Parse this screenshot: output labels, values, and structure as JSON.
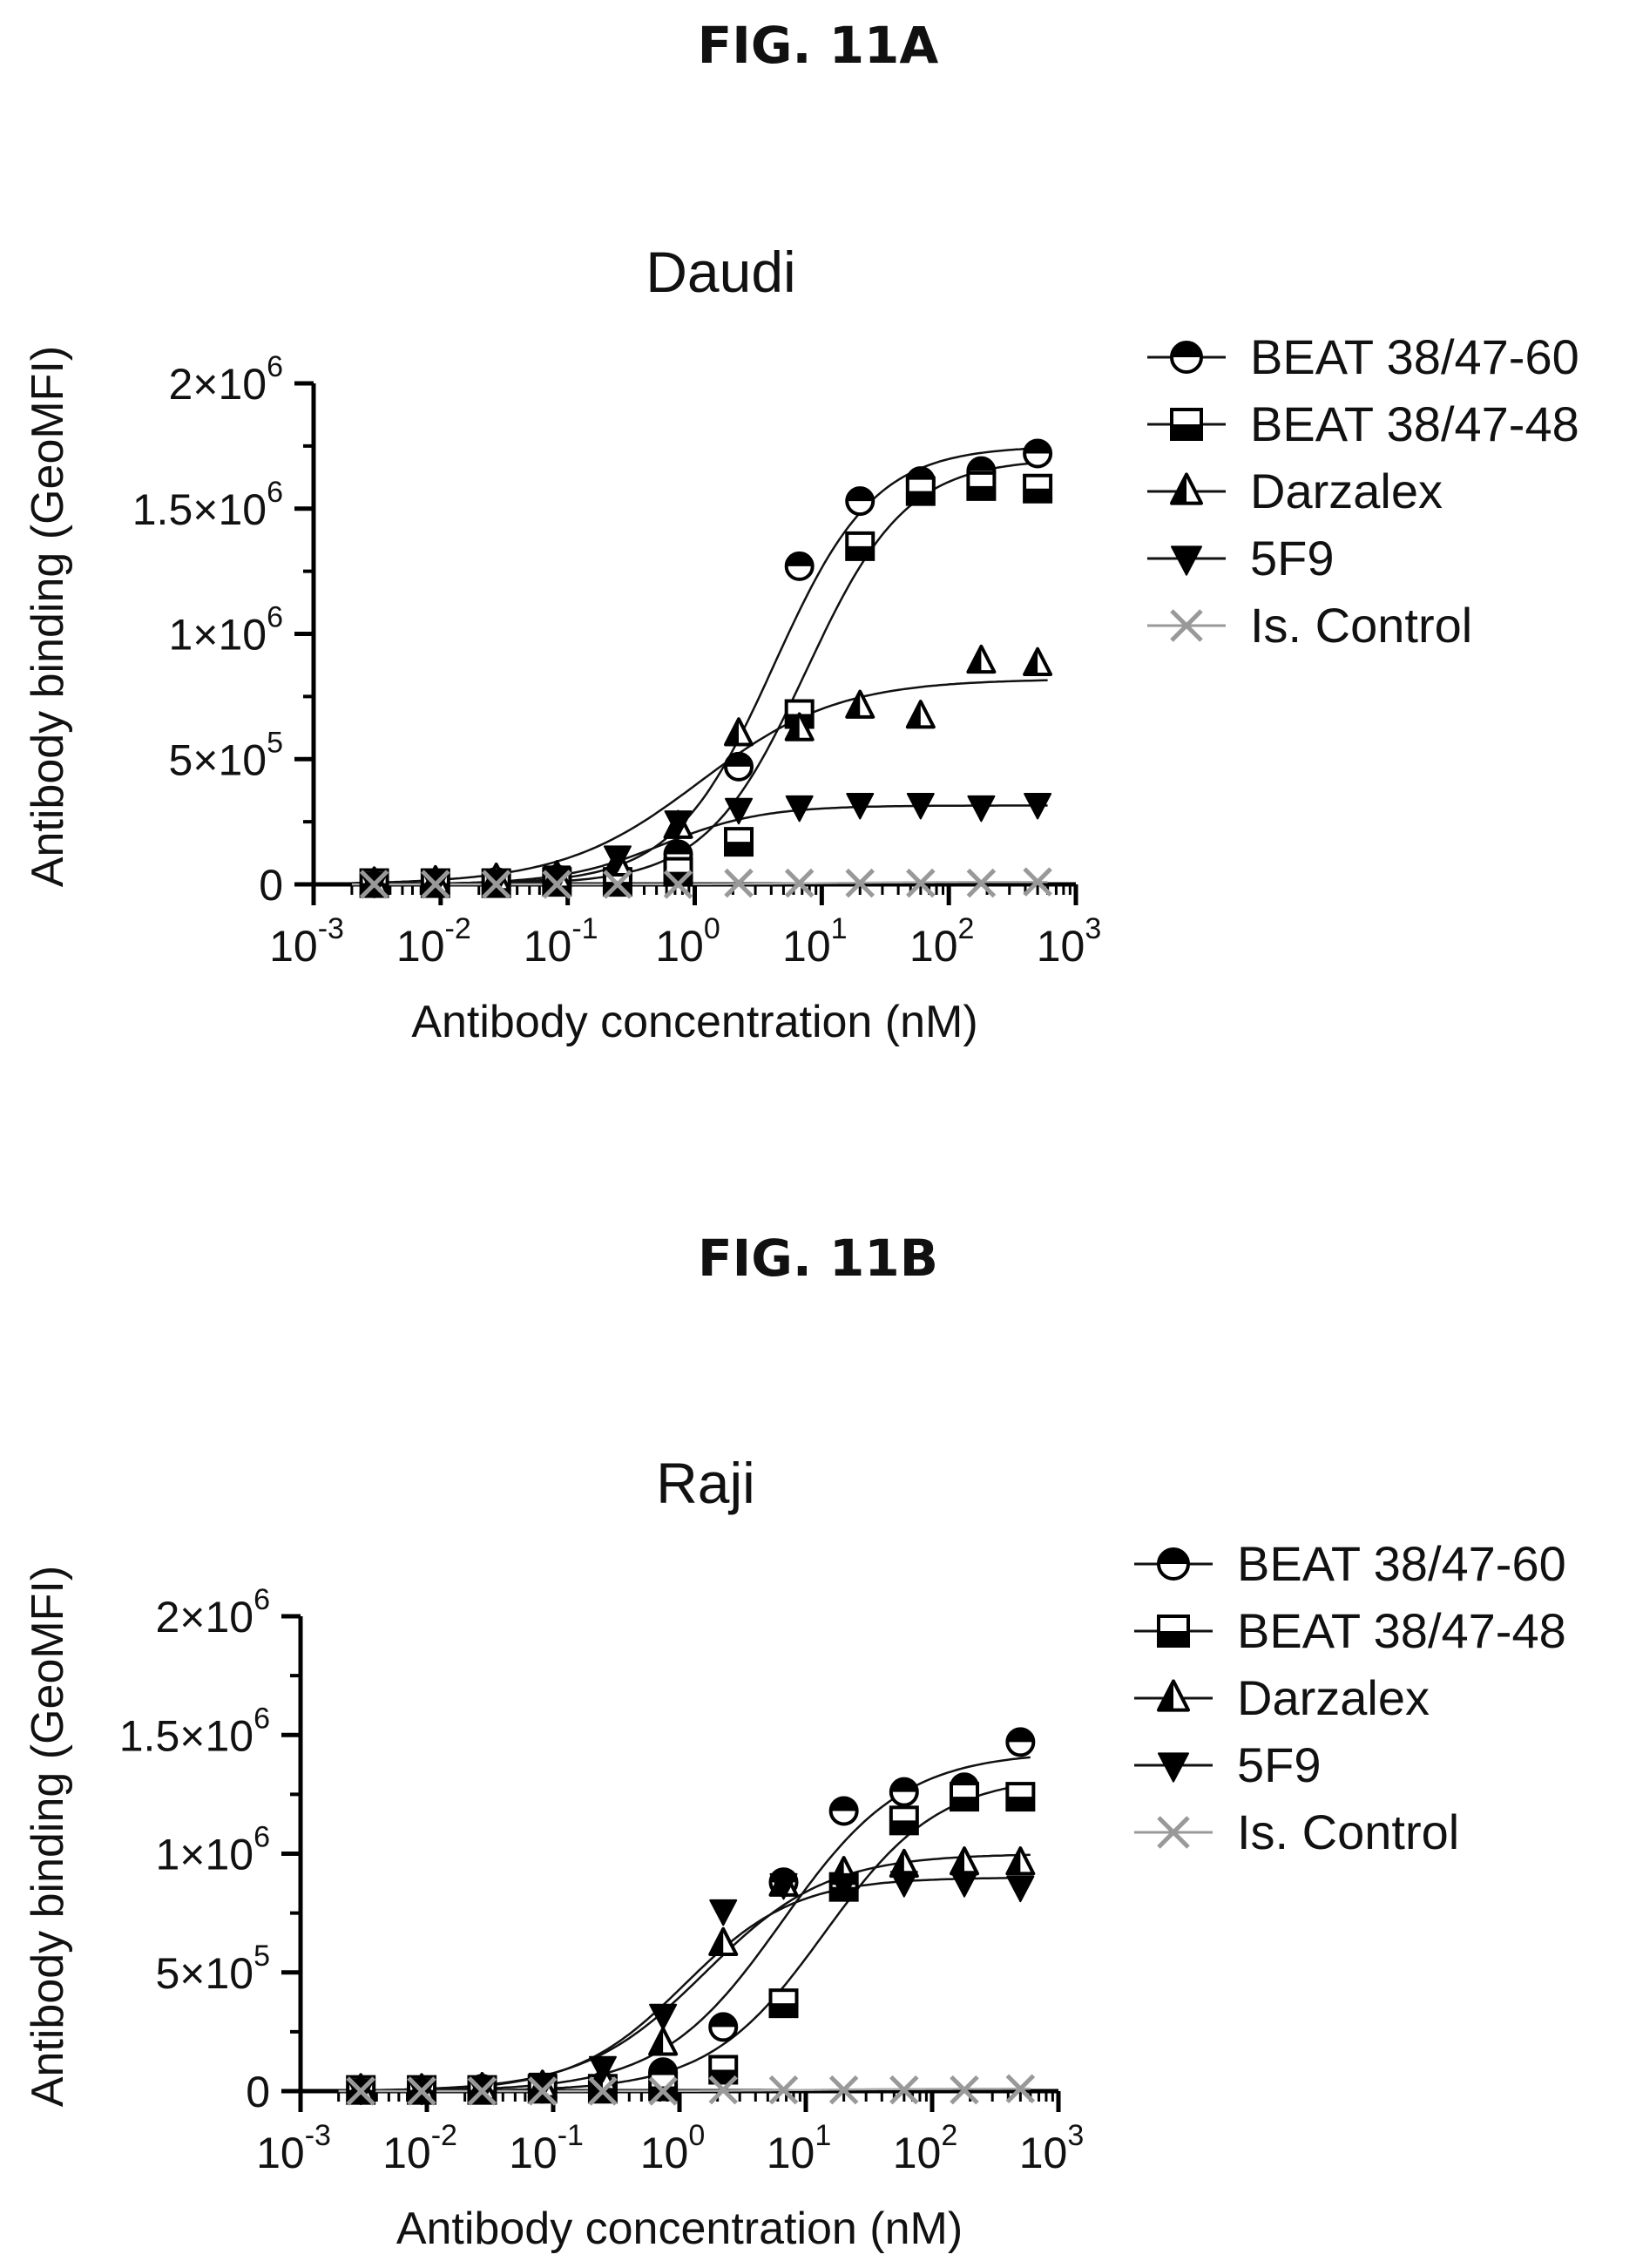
{
  "figures": [
    {
      "label": "FIG. 11A",
      "chart_data": {
        "type": "scatter",
        "title": "Daudi",
        "xlabel": "Antibody concentration (nM)",
        "ylabel": "Antibody binding (GeoMFI)",
        "xscale": "log",
        "xlim": [
          0.001,
          1000
        ],
        "ylim": [
          0,
          2000000
        ],
        "x_ticks": [
          {
            "base": "10",
            "exp": "-3"
          },
          {
            "base": "10",
            "exp": "-2"
          },
          {
            "base": "10",
            "exp": "-1"
          },
          {
            "base": "10",
            "exp": "0"
          },
          {
            "base": "10",
            "exp": "1"
          },
          {
            "base": "10",
            "exp": "2"
          },
          {
            "base": "10",
            "exp": "3"
          }
        ],
        "y_ticks": [
          {
            "value": 0,
            "base": "0",
            "exp": ""
          },
          {
            "value": 500000,
            "base": "5×10",
            "exp": "5"
          },
          {
            "value": 1000000,
            "base": "1×10",
            "exp": "6"
          },
          {
            "value": 1500000,
            "base": "1.5×10",
            "exp": "6"
          },
          {
            "value": 2000000,
            "base": "2×10",
            "exp": "6"
          }
        ],
        "legend_position": "right",
        "x": [
          0.003,
          0.0091,
          0.0274,
          0.0823,
          0.247,
          0.741,
          2.22,
          6.67,
          20,
          60,
          180,
          500
        ],
        "series": [
          {
            "name": "BEAT 38/47-60",
            "marker": "circle-half",
            "values": [
              5000,
              5000,
              10000,
              20000,
              30000,
              120000,
              470000,
              1270000,
              1530000,
              1610000,
              1650000,
              1720000
            ]
          },
          {
            "name": "BEAT 38/47-48",
            "marker": "square-half",
            "values": [
              5000,
              5000,
              5000,
              10000,
              10000,
              50000,
              170000,
              680000,
              1350000,
              1570000,
              1590000,
              1580000
            ]
          },
          {
            "name": "Darzalex",
            "marker": "triangle-half",
            "values": [
              5000,
              10000,
              20000,
              30000,
              80000,
              230000,
              600000,
              620000,
              710000,
              670000,
              890000,
              880000
            ]
          },
          {
            "name": "5F9",
            "marker": "triangle-down",
            "values": [
              5000,
              10000,
              15000,
              30000,
              110000,
              250000,
              300000,
              310000,
              320000,
              320000,
              310000,
              320000
            ]
          },
          {
            "name": "Is. Control",
            "marker": "x",
            "values": [
              0,
              0,
              0,
              0,
              0,
              0,
              5000,
              5000,
              5000,
              5000,
              5000,
              10000
            ]
          }
        ],
        "curves": [
          {
            "series": "BEAT 38/47-60",
            "bottom": 0,
            "top": 1750000,
            "ec50": 4.2,
            "hill": 1.1
          },
          {
            "series": "BEAT 38/47-48",
            "bottom": 0,
            "top": 1700000,
            "ec50": 7.5,
            "hill": 1.1
          },
          {
            "series": "Darzalex",
            "bottom": 0,
            "top": 820000,
            "ec50": 1.1,
            "hill": 0.8
          },
          {
            "series": "5F9",
            "bottom": 0,
            "top": 315000,
            "ec50": 0.55,
            "hill": 1.1
          },
          {
            "series": "Is. Control",
            "bottom": 0,
            "top": 10000,
            "ec50": 10,
            "hill": 1
          }
        ]
      }
    },
    {
      "label": "FIG. 11B",
      "chart_data": {
        "type": "scatter",
        "title": "Raji",
        "xlabel": "Antibody concentration (nM)",
        "ylabel": "Antibody binding (GeoMFI)",
        "xscale": "log",
        "xlim": [
          0.001,
          1000
        ],
        "ylim": [
          0,
          2000000
        ],
        "x_ticks": [
          {
            "base": "10",
            "exp": "-3"
          },
          {
            "base": "10",
            "exp": "-2"
          },
          {
            "base": "10",
            "exp": "-1"
          },
          {
            "base": "10",
            "exp": "0"
          },
          {
            "base": "10",
            "exp": "1"
          },
          {
            "base": "10",
            "exp": "2"
          },
          {
            "base": "10",
            "exp": "3"
          }
        ],
        "y_ticks": [
          {
            "value": 0,
            "base": "0",
            "exp": ""
          },
          {
            "value": 500000,
            "base": "5×10",
            "exp": "5"
          },
          {
            "value": 1000000,
            "base": "1×10",
            "exp": "6"
          },
          {
            "value": 1500000,
            "base": "1.5×10",
            "exp": "6"
          },
          {
            "value": 2000000,
            "base": "2×10",
            "exp": "6"
          }
        ],
        "legend_position": "right",
        "x": [
          0.003,
          0.0091,
          0.0274,
          0.0823,
          0.247,
          0.741,
          2.22,
          6.67,
          20,
          60,
          180,
          500
        ],
        "series": [
          {
            "name": "BEAT 38/47-60",
            "marker": "circle-half",
            "values": [
              5000,
              5000,
              10000,
              10000,
              20000,
              80000,
              270000,
              880000,
              1180000,
              1260000,
              1280000,
              1470000
            ]
          },
          {
            "name": "BEAT 38/47-48",
            "marker": "square-half",
            "values": [
              5000,
              5000,
              5000,
              10000,
              10000,
              20000,
              90000,
              370000,
              860000,
              1140000,
              1240000,
              1240000
            ]
          },
          {
            "name": "Darzalex",
            "marker": "triangle-half",
            "values": [
              5000,
              5000,
              10000,
              20000,
              50000,
              200000,
              620000,
              870000,
              920000,
              950000,
              960000,
              960000
            ]
          },
          {
            "name": "5F9",
            "marker": "triangle-down",
            "values": [
              5000,
              5000,
              10000,
              30000,
              100000,
              320000,
              760000,
              870000,
              870000,
              880000,
              880000,
              860000
            ]
          },
          {
            "name": "Is. Control",
            "marker": "x",
            "values": [
              0,
              0,
              0,
              0,
              0,
              0,
              5000,
              5000,
              5000,
              5000,
              5000,
              10000
            ]
          }
        ],
        "curves": [
          {
            "series": "BEAT 38/47-60",
            "bottom": 0,
            "top": 1430000,
            "ec50": 6.5,
            "hill": 0.9
          },
          {
            "series": "BEAT 38/47-48",
            "bottom": 0,
            "top": 1330000,
            "ec50": 14,
            "hill": 0.95
          },
          {
            "series": "Darzalex",
            "bottom": 0,
            "top": 1000000,
            "ec50": 1.6,
            "hill": 0.9
          },
          {
            "series": "5F9",
            "bottom": 0,
            "top": 900000,
            "ec50": 1.1,
            "hill": 1.0
          },
          {
            "series": "Is. Control",
            "bottom": 0,
            "top": 10000,
            "ec50": 10,
            "hill": 1
          }
        ]
      }
    }
  ]
}
